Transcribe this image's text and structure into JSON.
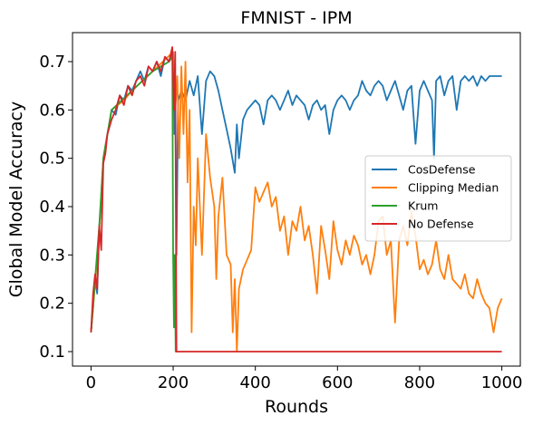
{
  "chart_data": {
    "type": "line",
    "title": "FMNIST - IPM",
    "xlabel": "Rounds",
    "ylabel": "Global Model Accuracy",
    "xlim": [
      -45,
      1045
    ],
    "ylim": [
      0.07,
      0.76
    ],
    "xticks": [
      0,
      200,
      400,
      600,
      800,
      1000
    ],
    "yticks": [
      0.1,
      0.2,
      0.3,
      0.4,
      0.5,
      0.6,
      0.7
    ],
    "xtick_labels": [
      "0",
      "200",
      "400",
      "600",
      "800",
      "1000"
    ],
    "ytick_labels": [
      "0.1",
      "0.2",
      "0.3",
      "0.4",
      "0.5",
      "0.6",
      "0.7"
    ],
    "grid": false,
    "legend_position": "center-right",
    "series": [
      {
        "name": "CosDefense",
        "color": "#1f77b4",
        "points": [
          [
            0,
            0.14
          ],
          [
            5,
            0.19
          ],
          [
            10,
            0.25
          ],
          [
            15,
            0.22
          ],
          [
            20,
            0.36
          ],
          [
            25,
            0.4
          ],
          [
            30,
            0.5
          ],
          [
            40,
            0.55
          ],
          [
            50,
            0.6
          ],
          [
            60,
            0.59
          ],
          [
            70,
            0.63
          ],
          [
            80,
            0.62
          ],
          [
            90,
            0.65
          ],
          [
            100,
            0.64
          ],
          [
            110,
            0.66
          ],
          [
            120,
            0.68
          ],
          [
            130,
            0.66
          ],
          [
            140,
            0.69
          ],
          [
            150,
            0.68
          ],
          [
            160,
            0.7
          ],
          [
            170,
            0.67
          ],
          [
            180,
            0.71
          ],
          [
            190,
            0.7
          ],
          [
            200,
            0.72
          ],
          [
            203,
            0.55
          ],
          [
            205,
            0.65
          ],
          [
            208,
            0.3
          ],
          [
            212,
            0.62
          ],
          [
            220,
            0.64
          ],
          [
            230,
            0.62
          ],
          [
            240,
            0.66
          ],
          [
            250,
            0.63
          ],
          [
            260,
            0.67
          ],
          [
            270,
            0.55
          ],
          [
            280,
            0.66
          ],
          [
            290,
            0.68
          ],
          [
            300,
            0.67
          ],
          [
            310,
            0.64
          ],
          [
            320,
            0.6
          ],
          [
            330,
            0.56
          ],
          [
            340,
            0.52
          ],
          [
            350,
            0.47
          ],
          [
            355,
            0.57
          ],
          [
            360,
            0.5
          ],
          [
            370,
            0.58
          ],
          [
            380,
            0.6
          ],
          [
            390,
            0.61
          ],
          [
            400,
            0.62
          ],
          [
            410,
            0.61
          ],
          [
            420,
            0.57
          ],
          [
            430,
            0.62
          ],
          [
            440,
            0.63
          ],
          [
            450,
            0.62
          ],
          [
            460,
            0.6
          ],
          [
            470,
            0.62
          ],
          [
            480,
            0.64
          ],
          [
            490,
            0.61
          ],
          [
            500,
            0.63
          ],
          [
            510,
            0.62
          ],
          [
            520,
            0.61
          ],
          [
            530,
            0.58
          ],
          [
            540,
            0.61
          ],
          [
            550,
            0.62
          ],
          [
            560,
            0.6
          ],
          [
            570,
            0.61
          ],
          [
            580,
            0.55
          ],
          [
            590,
            0.6
          ],
          [
            600,
            0.62
          ],
          [
            610,
            0.63
          ],
          [
            620,
            0.62
          ],
          [
            630,
            0.6
          ],
          [
            640,
            0.62
          ],
          [
            650,
            0.63
          ],
          [
            660,
            0.66
          ],
          [
            670,
            0.64
          ],
          [
            680,
            0.63
          ],
          [
            690,
            0.65
          ],
          [
            700,
            0.66
          ],
          [
            710,
            0.65
          ],
          [
            720,
            0.62
          ],
          [
            730,
            0.64
          ],
          [
            740,
            0.66
          ],
          [
            750,
            0.63
          ],
          [
            760,
            0.6
          ],
          [
            770,
            0.64
          ],
          [
            780,
            0.65
          ],
          [
            790,
            0.53
          ],
          [
            800,
            0.64
          ],
          [
            810,
            0.66
          ],
          [
            820,
            0.64
          ],
          [
            830,
            0.62
          ],
          [
            835,
            0.5
          ],
          [
            840,
            0.66
          ],
          [
            850,
            0.67
          ],
          [
            860,
            0.63
          ],
          [
            870,
            0.66
          ],
          [
            880,
            0.67
          ],
          [
            890,
            0.6
          ],
          [
            900,
            0.66
          ],
          [
            910,
            0.67
          ],
          [
            920,
            0.66
          ],
          [
            930,
            0.67
          ],
          [
            940,
            0.65
          ],
          [
            950,
            0.67
          ],
          [
            960,
            0.66
          ],
          [
            970,
            0.67
          ],
          [
            980,
            0.67
          ],
          [
            990,
            0.67
          ],
          [
            1000,
            0.67
          ]
        ]
      },
      {
        "name": "Clipping Median",
        "color": "#ff7f0e",
        "points": [
          [
            0,
            0.14
          ],
          [
            10,
            0.24
          ],
          [
            20,
            0.35
          ],
          [
            30,
            0.5
          ],
          [
            50,
            0.6
          ],
          [
            80,
            0.62
          ],
          [
            100,
            0.64
          ],
          [
            150,
            0.68
          ],
          [
            200,
            0.72
          ],
          [
            205,
            0.6
          ],
          [
            210,
            0.67
          ],
          [
            215,
            0.5
          ],
          [
            220,
            0.69
          ],
          [
            225,
            0.55
          ],
          [
            230,
            0.7
          ],
          [
            235,
            0.45
          ],
          [
            240,
            0.6
          ],
          [
            245,
            0.14
          ],
          [
            250,
            0.4
          ],
          [
            255,
            0.32
          ],
          [
            260,
            0.5
          ],
          [
            270,
            0.3
          ],
          [
            280,
            0.55
          ],
          [
            290,
            0.46
          ],
          [
            300,
            0.4
          ],
          [
            305,
            0.25
          ],
          [
            310,
            0.38
          ],
          [
            320,
            0.46
          ],
          [
            330,
            0.3
          ],
          [
            340,
            0.28
          ],
          [
            345,
            0.14
          ],
          [
            350,
            0.25
          ],
          [
            355,
            0.1
          ],
          [
            360,
            0.23
          ],
          [
            370,
            0.27
          ],
          [
            380,
            0.29
          ],
          [
            390,
            0.31
          ],
          [
            400,
            0.44
          ],
          [
            410,
            0.41
          ],
          [
            420,
            0.43
          ],
          [
            430,
            0.45
          ],
          [
            440,
            0.4
          ],
          [
            450,
            0.42
          ],
          [
            460,
            0.35
          ],
          [
            470,
            0.38
          ],
          [
            480,
            0.3
          ],
          [
            490,
            0.37
          ],
          [
            500,
            0.35
          ],
          [
            510,
            0.4
          ],
          [
            520,
            0.33
          ],
          [
            530,
            0.36
          ],
          [
            540,
            0.3
          ],
          [
            550,
            0.22
          ],
          [
            560,
            0.36
          ],
          [
            570,
            0.31
          ],
          [
            580,
            0.25
          ],
          [
            590,
            0.37
          ],
          [
            600,
            0.31
          ],
          [
            610,
            0.28
          ],
          [
            620,
            0.33
          ],
          [
            630,
            0.3
          ],
          [
            640,
            0.34
          ],
          [
            650,
            0.32
          ],
          [
            660,
            0.28
          ],
          [
            670,
            0.3
          ],
          [
            680,
            0.26
          ],
          [
            690,
            0.3
          ],
          [
            700,
            0.37
          ],
          [
            710,
            0.38
          ],
          [
            720,
            0.3
          ],
          [
            730,
            0.33
          ],
          [
            740,
            0.16
          ],
          [
            750,
            0.33
          ],
          [
            760,
            0.36
          ],
          [
            770,
            0.32
          ],
          [
            780,
            0.39
          ],
          [
            790,
            0.34
          ],
          [
            800,
            0.27
          ],
          [
            810,
            0.29
          ],
          [
            820,
            0.26
          ],
          [
            830,
            0.28
          ],
          [
            840,
            0.33
          ],
          [
            850,
            0.27
          ],
          [
            860,
            0.25
          ],
          [
            870,
            0.3
          ],
          [
            880,
            0.25
          ],
          [
            890,
            0.24
          ],
          [
            900,
            0.23
          ],
          [
            910,
            0.26
          ],
          [
            920,
            0.22
          ],
          [
            930,
            0.21
          ],
          [
            940,
            0.25
          ],
          [
            950,
            0.22
          ],
          [
            960,
            0.2
          ],
          [
            970,
            0.19
          ],
          [
            980,
            0.14
          ],
          [
            990,
            0.19
          ],
          [
            1000,
            0.21
          ]
        ]
      },
      {
        "name": "Krum",
        "color": "#2ca02c",
        "points": [
          [
            0,
            0.14
          ],
          [
            10,
            0.25
          ],
          [
            20,
            0.36
          ],
          [
            30,
            0.5
          ],
          [
            50,
            0.6
          ],
          [
            100,
            0.64
          ],
          [
            150,
            0.68
          ],
          [
            190,
            0.7
          ],
          [
            198,
            0.71
          ],
          [
            200,
            0.3
          ],
          [
            202,
            0.15
          ],
          [
            204,
            0.3
          ],
          [
            206,
            0.1
          ],
          [
            210,
            0.1
          ]
        ]
      },
      {
        "name": "No Defense",
        "color": "#d62728",
        "points": [
          [
            0,
            0.14
          ],
          [
            5,
            0.22
          ],
          [
            10,
            0.26
          ],
          [
            15,
            0.23
          ],
          [
            20,
            0.36
          ],
          [
            25,
            0.31
          ],
          [
            30,
            0.49
          ],
          [
            35,
            0.51
          ],
          [
            40,
            0.55
          ],
          [
            50,
            0.58
          ],
          [
            60,
            0.6
          ],
          [
            70,
            0.63
          ],
          [
            80,
            0.61
          ],
          [
            90,
            0.65
          ],
          [
            100,
            0.63
          ],
          [
            110,
            0.66
          ],
          [
            120,
            0.67
          ],
          [
            130,
            0.65
          ],
          [
            140,
            0.69
          ],
          [
            150,
            0.68
          ],
          [
            160,
            0.7
          ],
          [
            170,
            0.68
          ],
          [
            180,
            0.71
          ],
          [
            190,
            0.7
          ],
          [
            198,
            0.73
          ],
          [
            202,
            0.6
          ],
          [
            205,
            0.72
          ],
          [
            208,
            0.1
          ],
          [
            1000,
            0.1
          ]
        ]
      }
    ]
  }
}
